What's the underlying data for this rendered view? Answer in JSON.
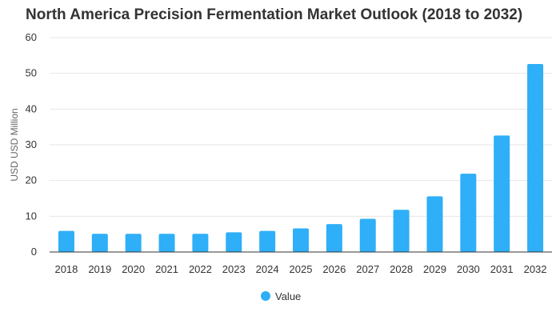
{
  "chart_data": {
    "type": "bar",
    "title": "North America Precision Fermentation Market Outlook (2018 to 2032)",
    "xlabel": "",
    "ylabel": "USD USD Million",
    "categories": [
      "2018",
      "2019",
      "2020",
      "2021",
      "2022",
      "2023",
      "2024",
      "2025",
      "2026",
      "2027",
      "2028",
      "2029",
      "2030",
      "2031",
      "2032"
    ],
    "series": [
      {
        "name": "Value",
        "values": [
          5.9,
          5.1,
          5.1,
          5.1,
          5.1,
          5.5,
          5.9,
          6.6,
          7.8,
          9.3,
          11.8,
          15.6,
          21.9,
          32.6,
          52.6
        ]
      }
    ],
    "ylim": [
      0,
      60
    ],
    "yticks": [
      0,
      10,
      20,
      30,
      40,
      50,
      60
    ],
    "grid": true,
    "legend_position": "bottom-center",
    "colors": {
      "bar": "#2eaff7",
      "grid": "#e6e6e6",
      "axis": "#333333"
    }
  }
}
